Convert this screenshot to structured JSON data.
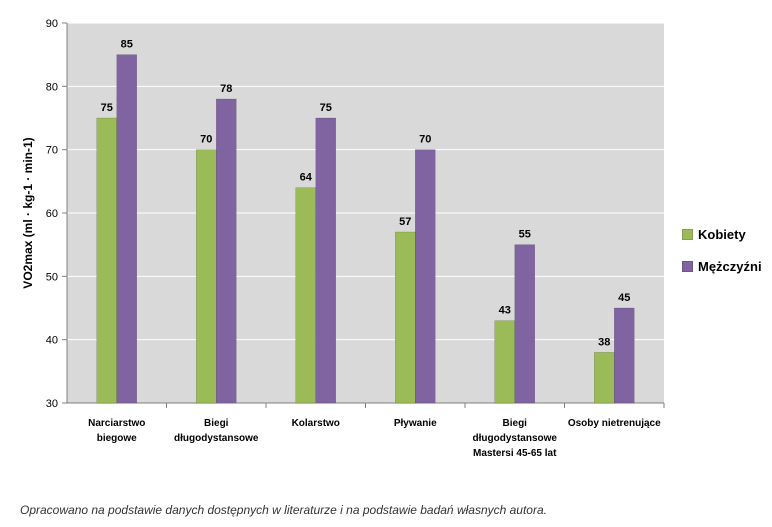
{
  "chart_data": {
    "type": "bar",
    "categories": [
      [
        "Narciarstwo",
        "biegowe"
      ],
      [
        "Biegi",
        "długodystansowe"
      ],
      [
        "Kolarstwo"
      ],
      [
        "Pływanie"
      ],
      [
        "Biegi",
        "długodystansowe",
        "Mastersi 45-65 lat"
      ],
      [
        "Osoby nietrenujące"
      ]
    ],
    "series": [
      {
        "name": "Kobiety",
        "color": "#9bbb59",
        "values": [
          75,
          70,
          64,
          57,
          43,
          38
        ]
      },
      {
        "name": "Mężczyźni",
        "color": "#8064a2",
        "values": [
          85,
          78,
          75,
          70,
          55,
          45
        ]
      }
    ],
    "ylabel": "VO2max (ml · kg-1 · min-1)",
    "ylim": [
      30,
      90
    ],
    "yticks": [
      30,
      40,
      50,
      60,
      70,
      80,
      90
    ],
    "grid": true,
    "legend_position": "right"
  },
  "legend": {
    "items": [
      {
        "label": "Kobiety",
        "color": "#9bbb59"
      },
      {
        "label": "Mężczyźni",
        "color": "#8064a2"
      }
    ]
  },
  "caption": "Opracowano na podstawie danych dostępnych w literaturze i na podstawie badań własnych autora."
}
